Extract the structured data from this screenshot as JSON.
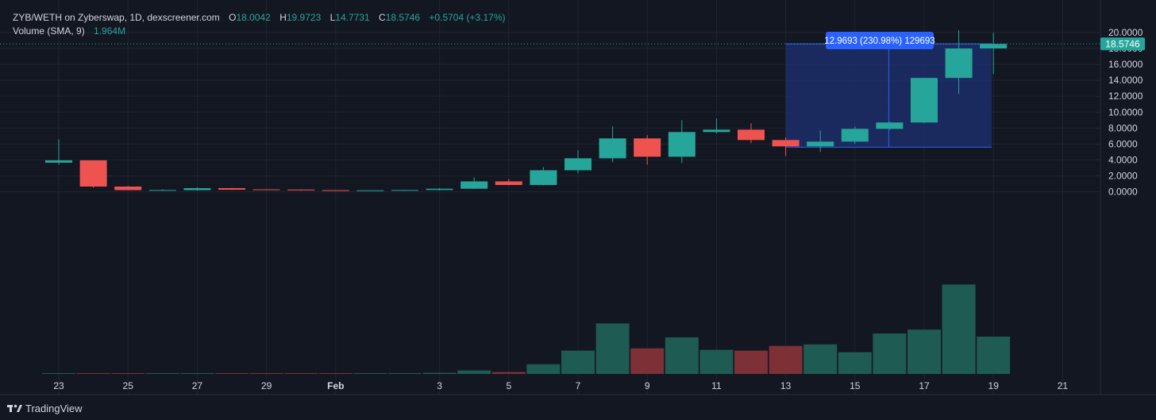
{
  "header": {
    "symbol": "ZYB/WETH on Zyberswap, 1D, dexscreener.com",
    "o_label": "O",
    "o_value": "18.0042",
    "h_label": "H",
    "h_value": "19.9723",
    "l_label": "L",
    "l_value": "14.7731",
    "c_label": "C",
    "c_value": "18.5746",
    "change": "+0.5704 (+3.17%)",
    "volume_label": "Volume (SMA, 9)",
    "volume_value": "1.964M"
  },
  "branding": {
    "name": "TradingView"
  },
  "last_price_label": "18.5746",
  "measure_label": "12.9693 (230.98%) 129693",
  "colors": {
    "background": "#131722",
    "up": "#26a69a",
    "down": "#ef5350",
    "vol_up": "#1e5b52",
    "vol_down": "#7d3036",
    "grid": "#1f2430",
    "text": "#d1d4dc",
    "measure_fill": "#1c2e6a",
    "measure_line": "#2962ff",
    "price_tag": "#26a69a"
  },
  "chart_data": {
    "type": "candlestick",
    "x_axis": {
      "ticks": [
        {
          "day": 23,
          "label": "23"
        },
        {
          "day": 25,
          "label": "25"
        },
        {
          "day": 27,
          "label": "27"
        },
        {
          "day": 29,
          "label": "29"
        },
        {
          "day": 31,
          "label": "Feb"
        },
        {
          "day": 34,
          "label": "3"
        },
        {
          "day": 36,
          "label": "5"
        },
        {
          "day": 38,
          "label": "7"
        },
        {
          "day": 40,
          "label": "9"
        },
        {
          "day": 42,
          "label": "11"
        },
        {
          "day": 44,
          "label": "13"
        },
        {
          "day": 46,
          "label": "15"
        },
        {
          "day": 48,
          "label": "17"
        },
        {
          "day": 50,
          "label": "19"
        },
        {
          "day": 52,
          "label": "21"
        }
      ]
    },
    "y_axis": {
      "ticks": [
        "20.0000",
        "18.0000",
        "16.0000",
        "14.0000",
        "12.0000",
        "10.0000",
        "8.0000",
        "6.0000",
        "4.0000",
        "2.0000",
        "0.0000"
      ],
      "ylim": [
        -1.5,
        21.5
      ]
    },
    "candles": [
      {
        "day": 23,
        "o": 3.65,
        "h": 6.6,
        "l": 3.4,
        "c": 3.95
      },
      {
        "day": 24,
        "o": 3.95,
        "h": 3.95,
        "l": 0.5,
        "c": 0.65
      },
      {
        "day": 25,
        "o": 0.65,
        "h": 0.72,
        "l": 0.18,
        "c": 0.2
      },
      {
        "day": 26,
        "o": 0.2,
        "h": 0.3,
        "l": 0.12,
        "c": 0.22
      },
      {
        "day": 27,
        "o": 0.2,
        "h": 0.55,
        "l": 0.15,
        "c": 0.45
      },
      {
        "day": 28,
        "o": 0.45,
        "h": 0.48,
        "l": 0.22,
        "c": 0.25
      },
      {
        "day": 29,
        "o": 0.3,
        "h": 0.32,
        "l": 0.2,
        "c": 0.22
      },
      {
        "day": 30,
        "o": 0.28,
        "h": 0.3,
        "l": 0.15,
        "c": 0.17
      },
      {
        "day": 31,
        "o": 0.2,
        "h": 0.22,
        "l": 0.12,
        "c": 0.14
      },
      {
        "day": 32,
        "o": 0.15,
        "h": 0.2,
        "l": 0.12,
        "c": 0.18
      },
      {
        "day": 33,
        "o": 0.17,
        "h": 0.24,
        "l": 0.14,
        "c": 0.22
      },
      {
        "day": 34,
        "o": 0.22,
        "h": 0.45,
        "l": 0.18,
        "c": 0.38
      },
      {
        "day": 35,
        "o": 0.38,
        "h": 1.8,
        "l": 0.35,
        "c": 1.3
      },
      {
        "day": 36,
        "o": 1.3,
        "h": 1.6,
        "l": 0.8,
        "c": 0.85
      },
      {
        "day": 37,
        "o": 0.85,
        "h": 3.1,
        "l": 0.8,
        "c": 2.7
      },
      {
        "day": 38,
        "o": 2.7,
        "h": 5.2,
        "l": 2.3,
        "c": 4.2
      },
      {
        "day": 39,
        "o": 4.2,
        "h": 8.2,
        "l": 3.7,
        "c": 6.7
      },
      {
        "day": 40,
        "o": 6.7,
        "h": 7.1,
        "l": 3.4,
        "c": 4.4
      },
      {
        "day": 41,
        "o": 4.4,
        "h": 9.0,
        "l": 3.6,
        "c": 7.5
      },
      {
        "day": 42,
        "o": 7.5,
        "h": 9.2,
        "l": 7.3,
        "c": 7.8
      },
      {
        "day": 43,
        "o": 7.8,
        "h": 8.6,
        "l": 6.1,
        "c": 6.5
      },
      {
        "day": 44,
        "o": 6.5,
        "h": 6.85,
        "l": 4.5,
        "c": 5.7
      },
      {
        "day": 45,
        "o": 5.7,
        "h": 7.7,
        "l": 5.0,
        "c": 6.3
      },
      {
        "day": 46,
        "o": 6.3,
        "h": 8.2,
        "l": 6.0,
        "c": 7.9
      },
      {
        "day": 47,
        "o": 7.9,
        "h": 8.8,
        "l": 7.8,
        "c": 8.7
      },
      {
        "day": 48,
        "o": 8.7,
        "h": 14.3,
        "l": 8.6,
        "c": 14.3
      },
      {
        "day": 49,
        "o": 14.3,
        "h": 20.3,
        "l": 12.3,
        "c": 18.0
      },
      {
        "day": 50,
        "o": 18.0042,
        "h": 19.9723,
        "l": 14.7731,
        "c": 18.5746
      }
    ],
    "volume": [
      {
        "day": 23,
        "v": 0.02,
        "up": true
      },
      {
        "day": 24,
        "v": 0.01,
        "up": false
      },
      {
        "day": 25,
        "v": 0.005,
        "up": false
      },
      {
        "day": 26,
        "v": 0.004,
        "up": true
      },
      {
        "day": 27,
        "v": 0.008,
        "up": true
      },
      {
        "day": 28,
        "v": 0.004,
        "up": false
      },
      {
        "day": 29,
        "v": 0.003,
        "up": false
      },
      {
        "day": 30,
        "v": 0.003,
        "up": false
      },
      {
        "day": 31,
        "v": 0.003,
        "up": false
      },
      {
        "day": 32,
        "v": 0.005,
        "up": true
      },
      {
        "day": 33,
        "v": 0.01,
        "up": true
      },
      {
        "day": 34,
        "v": 0.03,
        "up": true
      },
      {
        "day": 35,
        "v": 0.09,
        "up": true
      },
      {
        "day": 36,
        "v": 0.05,
        "up": false
      },
      {
        "day": 37,
        "v": 0.25,
        "up": true
      },
      {
        "day": 38,
        "v": 0.6,
        "up": true
      },
      {
        "day": 39,
        "v": 1.3,
        "up": true
      },
      {
        "day": 40,
        "v": 0.66,
        "up": false
      },
      {
        "day": 41,
        "v": 0.94,
        "up": true
      },
      {
        "day": 42,
        "v": 0.62,
        "up": true
      },
      {
        "day": 43,
        "v": 0.6,
        "up": false
      },
      {
        "day": 44,
        "v": 0.72,
        "up": false
      },
      {
        "day": 45,
        "v": 0.76,
        "up": true
      },
      {
        "day": 46,
        "v": 0.56,
        "up": true
      },
      {
        "day": 47,
        "v": 1.04,
        "up": true
      },
      {
        "day": 48,
        "v": 1.14,
        "up": true
      },
      {
        "day": 49,
        "v": 2.3,
        "up": true
      },
      {
        "day": 50,
        "v": 0.96,
        "up": true
      }
    ],
    "last_price": 18.5746,
    "measure": {
      "start_day": 44,
      "end_day": 50,
      "low": 5.6,
      "high": 18.5746
    }
  }
}
